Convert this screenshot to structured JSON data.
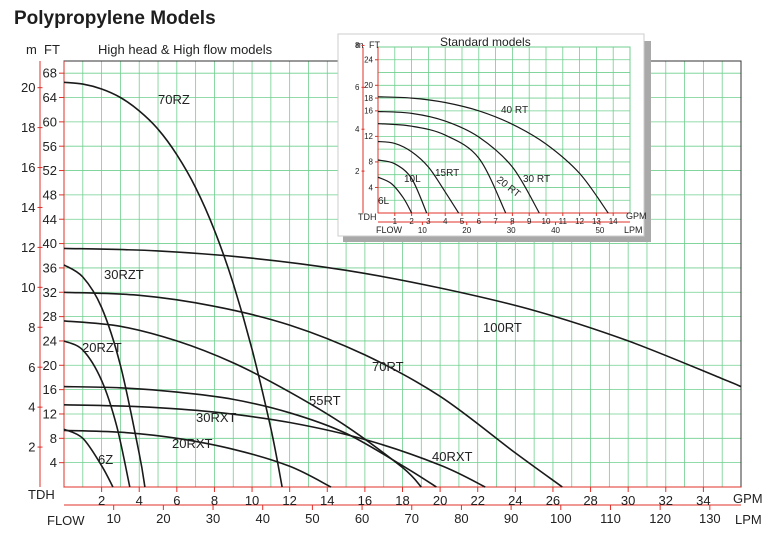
{
  "chart_data": {
    "title": "Polypropylene Models",
    "main": {
      "type": "line",
      "subtitle": "High head & High flow models",
      "x_unit": "GPM",
      "x_unit2": "LPM",
      "x_axis_label": "FLOW",
      "y_axis_label": "TDH",
      "y_unit_m": "m",
      "y_unit_ft": "FT",
      "xlim": [
        0,
        36
      ],
      "ylim_ft": [
        0,
        70
      ],
      "gpm_ticks": [
        "2",
        "4",
        "6",
        "8",
        "10",
        "12",
        "14",
        "16",
        "18",
        "20",
        "22",
        "24",
        "26",
        "28",
        "30",
        "32",
        "34"
      ],
      "lpm_ticks": [
        "10",
        "20",
        "30",
        "40",
        "50",
        "60",
        "70",
        "80",
        "90",
        "100",
        "110",
        "120",
        "130"
      ],
      "ft_ticks": [
        "4",
        "8",
        "12",
        "16",
        "20",
        "24",
        "28",
        "32",
        "36",
        "40",
        "44",
        "48",
        "52",
        "56",
        "60",
        "64",
        "68"
      ],
      "m_ticks": [
        "2",
        "4",
        "6",
        "8",
        "10",
        "12",
        "14",
        "16",
        "18",
        "20"
      ],
      "grid": true,
      "series": [
        {
          "name": "70RZ",
          "x": [
            0,
            1,
            2,
            3,
            4,
            5,
            6,
            7,
            8,
            9,
            10,
            11,
            11.6
          ],
          "y": [
            66.5,
            66.2,
            65.4,
            64,
            61.8,
            58.8,
            54.6,
            49.2,
            42.2,
            33.4,
            22.6,
            9.6,
            0
          ]
        },
        {
          "name": "30RZT",
          "x": [
            0,
            1,
            2,
            3,
            4,
            4.3
          ],
          "y": [
            36.5,
            34.5,
            29.5,
            20,
            5.5,
            0
          ]
        },
        {
          "name": "20RZT",
          "x": [
            0,
            1,
            2,
            2.8,
            3.5
          ],
          "y": [
            24,
            22.5,
            17.5,
            10,
            0
          ]
        },
        {
          "name": "6Z",
          "x": [
            0,
            1,
            2,
            2.6
          ],
          "y": [
            9.5,
            8,
            3.5,
            0
          ]
        },
        {
          "name": "100RT",
          "x": [
            0,
            5,
            10,
            15,
            20,
            25,
            30,
            35,
            36
          ],
          "y": [
            39.2,
            38.8,
            37.6,
            35.6,
            32.7,
            29,
            24,
            17.8,
            16.5
          ]
        },
        {
          "name": "70RT",
          "x": [
            0,
            4,
            8,
            12,
            16,
            20,
            24,
            26.5
          ],
          "y": [
            32,
            31.5,
            29.7,
            26.6,
            21.7,
            14.9,
            5.6,
            0
          ]
        },
        {
          "name": "55RT",
          "x": [
            0,
            3,
            6,
            9,
            12,
            15,
            18,
            19
          ],
          "y": [
            27.3,
            26.4,
            24,
            20.4,
            15.6,
            10,
            3.2,
            0
          ]
        },
        {
          "name": "30RXT",
          "x": [
            0,
            3,
            6,
            9,
            12,
            15,
            18,
            19.8
          ],
          "y": [
            16.5,
            16.3,
            15.6,
            14.4,
            12.2,
            8.8,
            3.5,
            0
          ]
        },
        {
          "name": "40RXT",
          "x": [
            0,
            4,
            8,
            12,
            16,
            20,
            22.4
          ],
          "y": [
            13.5,
            13.2,
            12.3,
            10.6,
            7.8,
            3.6,
            0
          ]
        },
        {
          "name": "20RXT",
          "x": [
            0,
            3,
            6,
            9,
            12,
            14.2
          ],
          "y": [
            9.3,
            9,
            8,
            6.2,
            3.4,
            0
          ]
        }
      ]
    },
    "inset": {
      "type": "line",
      "title": "Standard models",
      "x_unit": "GPM",
      "x_unit2": "LPM",
      "x_axis_label": "FLOW",
      "y_axis_label": "TDH",
      "y_unit_m": "m",
      "y_unit_ft": "FT",
      "xlim": [
        0,
        15
      ],
      "ylim_ft": [
        0,
        26
      ],
      "gpm_ticks": [
        "1",
        "2",
        "3",
        "4",
        "5",
        "6",
        "7",
        "8",
        "9",
        "10",
        "11",
        "12",
        "13",
        "14"
      ],
      "lpm_ticks": [
        "10",
        "20",
        "30",
        "40",
        "50"
      ],
      "ft_ticks": [
        "4",
        "8",
        "12",
        "16",
        "18",
        "20",
        "24"
      ],
      "m_ticks": [
        "2",
        "4",
        "6",
        "8"
      ],
      "grid": true,
      "series": [
        {
          "name": "40 RT",
          "x": [
            0,
            2,
            4,
            6,
            8,
            10,
            12,
            13.7
          ],
          "y": [
            18.2,
            18,
            17.3,
            16,
            13.9,
            10.8,
            6.2,
            0
          ]
        },
        {
          "name": "30 RT",
          "x": [
            0,
            2,
            4,
            6,
            8,
            9.6
          ],
          "y": [
            15.9,
            15.6,
            14.4,
            11.9,
            7.2,
            0
          ]
        },
        {
          "name": "20 RT",
          "x": [
            0,
            2,
            4,
            6,
            7.6
          ],
          "y": [
            14,
            13.6,
            12.2,
            8.6,
            0
          ]
        },
        {
          "name": "15RT",
          "x": [
            0,
            1,
            2,
            3,
            4,
            4.8
          ],
          "y": [
            11.2,
            10.9,
            9.6,
            7.2,
            3.3,
            0
          ]
        },
        {
          "name": "10L",
          "x": [
            0,
            1,
            2,
            2.9
          ],
          "y": [
            8.3,
            7.7,
            5.4,
            0
          ]
        },
        {
          "name": "6L",
          "x": [
            0,
            0.8,
            1.5,
            2
          ],
          "y": [
            5.6,
            4.6,
            2.4,
            0
          ]
        }
      ]
    }
  }
}
